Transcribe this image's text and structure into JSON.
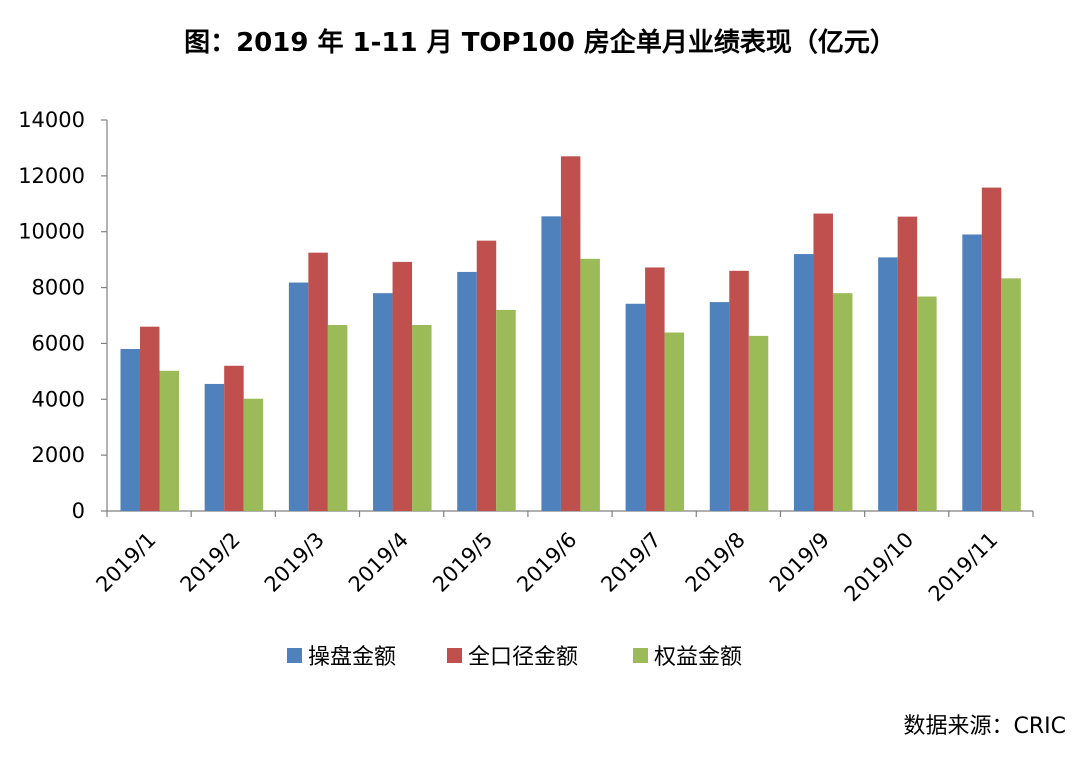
{
  "chart_data": {
    "type": "bar",
    "title": "图：2019 年 1-11 月 TOP100 房企单月业绩表现（亿元）",
    "categories": [
      "2019/1",
      "2019/2",
      "2019/3",
      "2019/4",
      "2019/5",
      "2019/6",
      "2019/7",
      "2019/8",
      "2019/9",
      "2019/10",
      "2019/11"
    ],
    "series": [
      {
        "name": "操盘金额",
        "color": "#4F81BD",
        "values": [
          5800,
          4550,
          8180,
          7800,
          8560,
          10550,
          7420,
          7480,
          9200,
          9080,
          9900
        ]
      },
      {
        "name": "全口径金额",
        "color": "#C0504D",
        "values": [
          6600,
          5200,
          9250,
          8920,
          9680,
          12700,
          8720,
          8600,
          10650,
          10540,
          11580
        ]
      },
      {
        "name": "权益金额",
        "color": "#9BBB59",
        "values": [
          5020,
          4020,
          6660,
          6660,
          7200,
          9030,
          6390,
          6270,
          7800,
          7680,
          8330
        ]
      }
    ],
    "ylim": [
      0,
      14000
    ],
    "yticks": [
      "0",
      "2000",
      "4000",
      "6000",
      "8000",
      "10000",
      "12000",
      "14000"
    ],
    "grid": false,
    "legend_position": "bottom"
  },
  "source": "数据来源：CRIC"
}
